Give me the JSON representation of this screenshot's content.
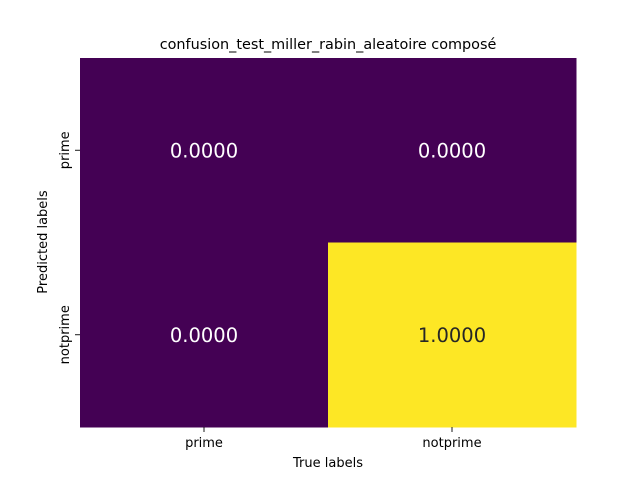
{
  "chart_data": {
    "type": "heatmap",
    "title": "confusion_test_miller_rabin_aleatoire composé",
    "xlabel": "True labels",
    "ylabel": "Predicted labels",
    "x_categories": [
      "prime",
      "notprime"
    ],
    "y_categories": [
      "prime",
      "notprime"
    ],
    "values": [
      [
        0.0,
        0.0
      ],
      [
        0.0,
        1.0
      ]
    ],
    "cell_labels": [
      [
        "0.0000",
        "0.0000"
      ],
      [
        "0.0000",
        "1.0000"
      ]
    ],
    "value_range": [
      0,
      1
    ],
    "colormap": "viridis",
    "colormap_low": "#440154",
    "colormap_high": "#fde725",
    "text_on_dark": "#ffffff",
    "text_on_light": "#262626",
    "grid": false,
    "colorbar": false
  }
}
